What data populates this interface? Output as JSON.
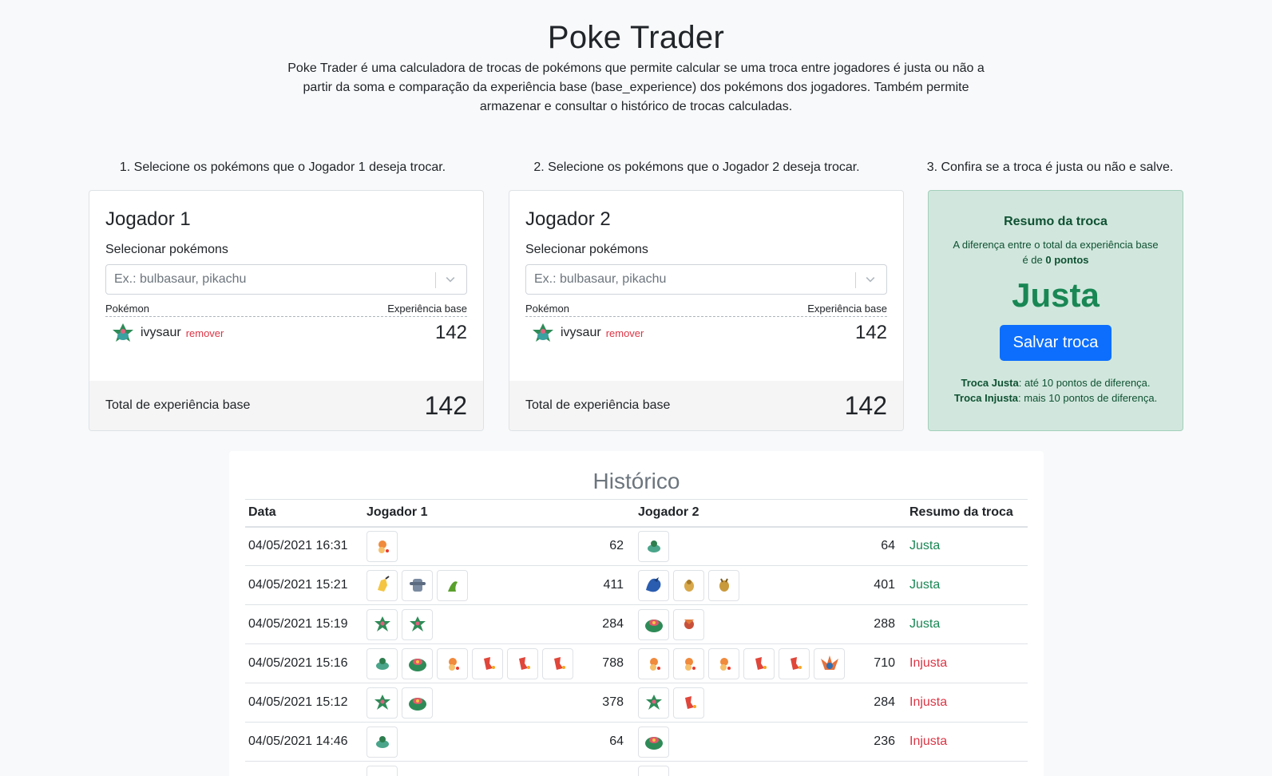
{
  "header": {
    "title": "Poke Trader",
    "description": "Poke Trader é uma calculadora de trocas de pokémons que permite calcular se uma troca entre jogadores é justa ou não a partir da soma e comparação da experiência base (base_experience) dos pokémons dos jogadores. Também permite armazenar e consultar o histórico de trocas calculadas."
  },
  "steps": [
    "1. Selecione os pokémons que o Jogador 1 deseja trocar.",
    "2. Selecione os pokémons que o Jogador 2 deseja trocar.",
    "3. Confira se a troca é justa ou não e salve."
  ],
  "player1": {
    "title": "Jogador 1",
    "select_label": "Selecionar pokémons",
    "placeholder": "Ex.: bulbasaur, pikachu",
    "col_pokemon": "Pokémon",
    "col_xp": "Experiência base",
    "pokemon": [
      {
        "name": "ivysaur",
        "remove": "remover",
        "xp": "142",
        "icon": "ivysaur-sprite"
      }
    ],
    "total_label": "Total de experiência base",
    "total": "142"
  },
  "player2": {
    "title": "Jogador 2",
    "select_label": "Selecionar pokémons",
    "placeholder": "Ex.: bulbasaur, pikachu",
    "col_pokemon": "Pokémon",
    "col_xp": "Experiência base",
    "pokemon": [
      {
        "name": "ivysaur",
        "remove": "remover",
        "xp": "142",
        "icon": "ivysaur-sprite"
      }
    ],
    "total_label": "Total de experiência base",
    "total": "142"
  },
  "summary": {
    "title": "Resumo da troca",
    "diff_prefix": "A diferença entre o total da experiência base é de",
    "diff_value": "0 pontos",
    "verdict": "Justa",
    "save_label": "Salvar troca",
    "rule_fair_label": "Troca Justa",
    "rule_fair_text": ": até 10 pontos de diferença.",
    "rule_unfair_label": "Troca Injusta",
    "rule_unfair_text": ": mais 10 pontos de diferença."
  },
  "history": {
    "title": "Histórico",
    "columns": [
      "Data",
      "Jogador 1",
      "Jogador 2",
      "Resumo da troca"
    ],
    "rows": [
      {
        "date": "04/05/2021 16:31",
        "p1": [
          "charmander"
        ],
        "p1_total": "62",
        "p2": [
          "bulbasaur"
        ],
        "p2_total": "64",
        "result": "Justa",
        "fair": true
      },
      {
        "date": "04/05/2021 15:21",
        "p1": [
          "pikachu",
          "machamp",
          "caterpie"
        ],
        "p1_total": "411",
        "p2": [
          "gyarados",
          "abra",
          "kadabra"
        ],
        "p2_total": "401",
        "result": "Justa",
        "fair": true
      },
      {
        "date": "04/05/2021 15:19",
        "p1": [
          "ivysaur",
          "ivysaur"
        ],
        "p1_total": "284",
        "p2": [
          "venusaur",
          "vulpix"
        ],
        "p2_total": "288",
        "result": "Justa",
        "fair": true
      },
      {
        "date": "04/05/2021 15:16",
        "p1": [
          "bulbasaur",
          "venusaur",
          "charmander",
          "charmeleon",
          "charmeleon",
          "charmeleon"
        ],
        "p1_total": "788",
        "p2": [
          "charmander",
          "charmander",
          "charmander",
          "charmeleon",
          "charmeleon",
          "charizard"
        ],
        "p2_total": "710",
        "result": "Injusta",
        "fair": false
      },
      {
        "date": "04/05/2021 15:12",
        "p1": [
          "ivysaur",
          "venusaur"
        ],
        "p1_total": "378",
        "p2": [
          "ivysaur",
          "charmeleon"
        ],
        "p2_total": "284",
        "result": "Injusta",
        "fair": false
      },
      {
        "date": "04/05/2021 14:46",
        "p1": [
          "bulbasaur"
        ],
        "p1_total": "64",
        "p2": [
          "venusaur"
        ],
        "p2_total": "236",
        "result": "Injusta",
        "fair": false
      }
    ]
  },
  "colors": {
    "fair": "#198754",
    "unfair": "#dc3545",
    "primary": "#0d6efd",
    "summary_bg": "#d1e7dd"
  }
}
